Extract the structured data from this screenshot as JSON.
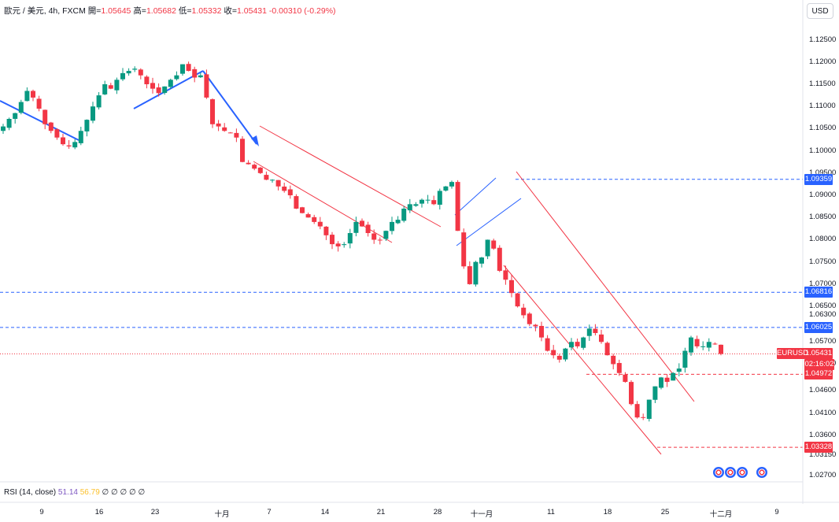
{
  "header": {
    "symbol": "歐元 / 美元, 4h, FXCM",
    "open_label": "開=",
    "open": "1.05645",
    "high_label": "高=",
    "high": "1.05682",
    "low_label": "低=",
    "low": "1.05332",
    "close_label": "收=",
    "close": "1.05431",
    "change": "-0.00310 (-0.29%)"
  },
  "currency_button": "USD",
  "rsi": {
    "label": "RSI (14, close)",
    "value1": "51.14",
    "value2": "56.79",
    "extra": "∅ ∅ ∅ ∅ ∅"
  },
  "colors": {
    "up": "#089981",
    "down": "#f23645",
    "blue": "#2962ff",
    "channel": "#f23645"
  },
  "chart_data": {
    "type": "candlestick",
    "symbol": "EURUSD",
    "interval": "4h",
    "y_ticks": [
      "1.12500",
      "1.12000",
      "1.11500",
      "1.11000",
      "1.10500",
      "1.10000",
      "1.09500",
      "1.09000",
      "1.08500",
      "1.08000",
      "1.07500",
      "1.07000",
      "1.06500",
      "1.06300",
      "1.05700",
      "1.05200",
      "1.04600",
      "1.04100",
      "1.03600",
      "1.03150",
      "1.02700"
    ],
    "ylim": [
      1.0255,
      1.129
    ],
    "x_ticks": [
      "9",
      "16",
      "23",
      "十月",
      "7",
      "14",
      "21",
      "28",
      "十一月",
      "11",
      "18",
      "25",
      "十二月",
      "9"
    ],
    "price_tags": [
      {
        "label": "1.09359",
        "value": 1.09359,
        "color": "#2962ff"
      },
      {
        "label": "1.06816",
        "value": 1.06816,
        "color": "#2962ff"
      },
      {
        "label": "1.06025",
        "value": 1.06025,
        "color": "#2962ff"
      },
      {
        "label": "1.05431",
        "value": 1.05431,
        "color": "#f23645"
      },
      {
        "label": "1.04972",
        "value": 1.04972,
        "color": "#f23645"
      },
      {
        "label": "1.03328",
        "value": 1.03328,
        "color": "#f23645"
      }
    ],
    "last_price": {
      "pair": "EURUSD",
      "price": "1.05431",
      "countdown": "02:16:02"
    },
    "series": [
      {
        "name": "close",
        "values": [
          1.1055,
          1.1072,
          1.1085,
          1.111,
          1.1135,
          1.112,
          1.1095,
          1.106,
          1.1045,
          1.103,
          1.1015,
          1.101,
          1.102,
          1.1045,
          1.107,
          1.11,
          1.1125,
          1.115,
          1.114,
          1.116,
          1.1175,
          1.118,
          1.1185,
          1.117,
          1.115,
          1.114,
          1.113,
          1.1145,
          1.116,
          1.117,
          1.1195,
          1.118,
          1.1165,
          1.117,
          1.112,
          1.106,
          1.1055,
          1.1045,
          1.104,
          1.103,
          1.0975,
          1.097,
          1.096,
          1.095,
          1.0935,
          1.0935,
          1.092,
          1.091,
          1.09,
          1.087,
          1.086,
          1.085,
          1.084,
          1.083,
          1.081,
          1.079,
          1.0785,
          1.079,
          1.0815,
          1.084,
          1.083,
          1.0815,
          1.08,
          1.08,
          1.082,
          1.084,
          1.0845,
          1.087,
          1.088,
          1.088,
          1.089,
          1.089,
          1.088,
          1.091,
          1.092,
          1.093,
          1.082,
          1.074,
          1.07,
          1.075,
          1.076,
          1.08,
          1.078,
          1.073,
          1.071,
          1.068,
          1.065,
          1.063,
          1.061,
          1.0605,
          1.058,
          1.055,
          1.054,
          1.053,
          1.0555,
          1.057,
          1.056,
          1.058,
          1.06,
          1.059,
          1.057,
          1.054,
          1.052,
          1.05,
          1.048,
          1.043,
          1.04,
          1.04,
          1.044,
          1.047,
          1.049,
          1.048,
          1.05,
          1.051,
          1.055,
          1.058,
          1.056,
          1.056,
          1.057,
          1.0565,
          1.0543
        ]
      }
    ],
    "annotations": [
      "up-trend line",
      "down arrow",
      "descending channel",
      "rising wedge",
      "steep descending channel",
      "horizontal support/resistance levels"
    ]
  }
}
